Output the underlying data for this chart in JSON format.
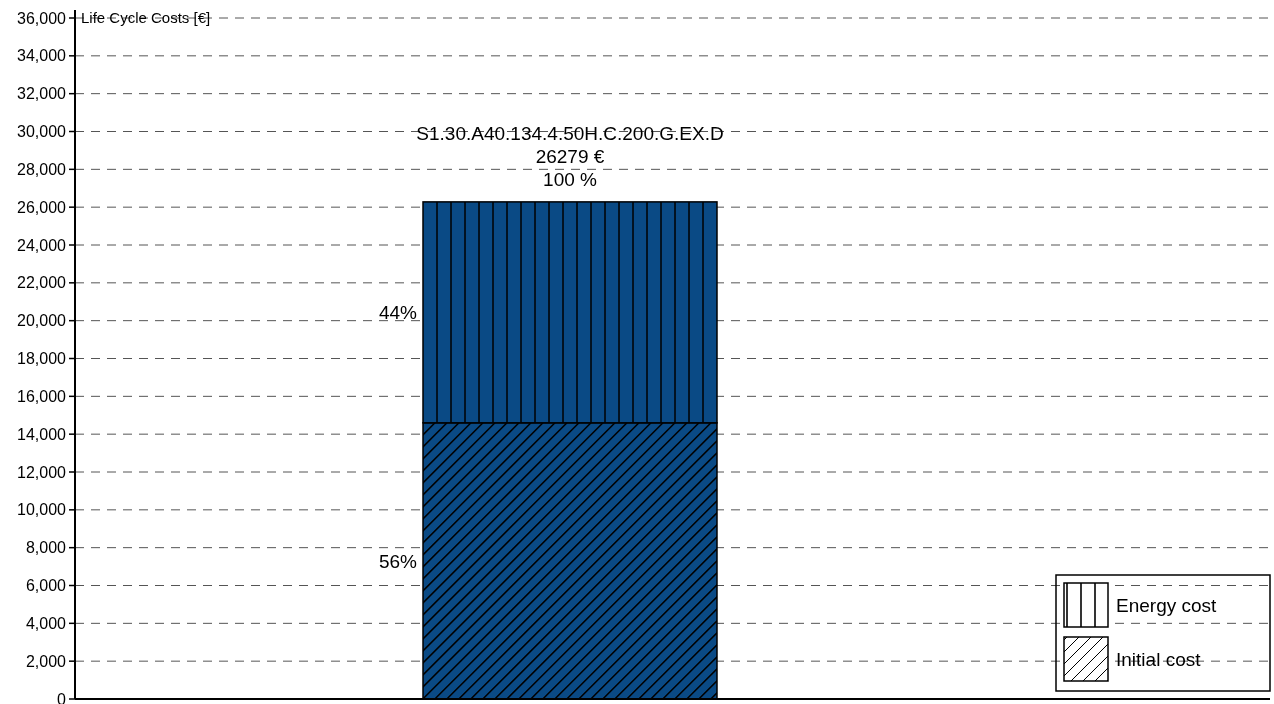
{
  "chart_data": {
    "type": "bar",
    "stacked": true,
    "ylabel": "Life Cycle Costs [€]",
    "categories": [
      "S1.30.A40.134.4.50H.C.200.G.EX.D"
    ],
    "series": [
      {
        "name": "Initial cost",
        "color": "#0a4a85",
        "values": [
          14600
        ]
      },
      {
        "name": "Energy cost",
        "color": "#0a4a85",
        "values": [
          11679
        ]
      }
    ],
    "totals": [
      "26279 €"
    ],
    "annotations": [
      "56%",
      "44%",
      "100 %"
    ],
    "ylim": [
      0,
      36000
    ],
    "yticks": [
      {
        "value": 0,
        "label": "0"
      },
      {
        "value": 2000,
        "label": "2,000"
      },
      {
        "value": 4000,
        "label": "4,000"
      },
      {
        "value": 6000,
        "label": "6,000"
      },
      {
        "value": 8000,
        "label": "8,000"
      },
      {
        "value": 10000,
        "label": "10,000"
      },
      {
        "value": 12000,
        "label": "12,000"
      },
      {
        "value": 14000,
        "label": "14,000"
      },
      {
        "value": 16000,
        "label": "16,000"
      },
      {
        "value": 18000,
        "label": "18,000"
      },
      {
        "value": 20000,
        "label": "20,000"
      },
      {
        "value": 22000,
        "label": "22,000"
      },
      {
        "value": 24000,
        "label": "24,000"
      },
      {
        "value": 26000,
        "label": "26,000"
      },
      {
        "value": 28000,
        "label": "28,000"
      },
      {
        "value": 30000,
        "label": "30,000"
      },
      {
        "value": 32000,
        "label": "32,000"
      },
      {
        "value": 34000,
        "label": "34,000"
      },
      {
        "value": 36000,
        "label": "36,000"
      }
    ],
    "grid": "y",
    "legend": "bottom right"
  }
}
